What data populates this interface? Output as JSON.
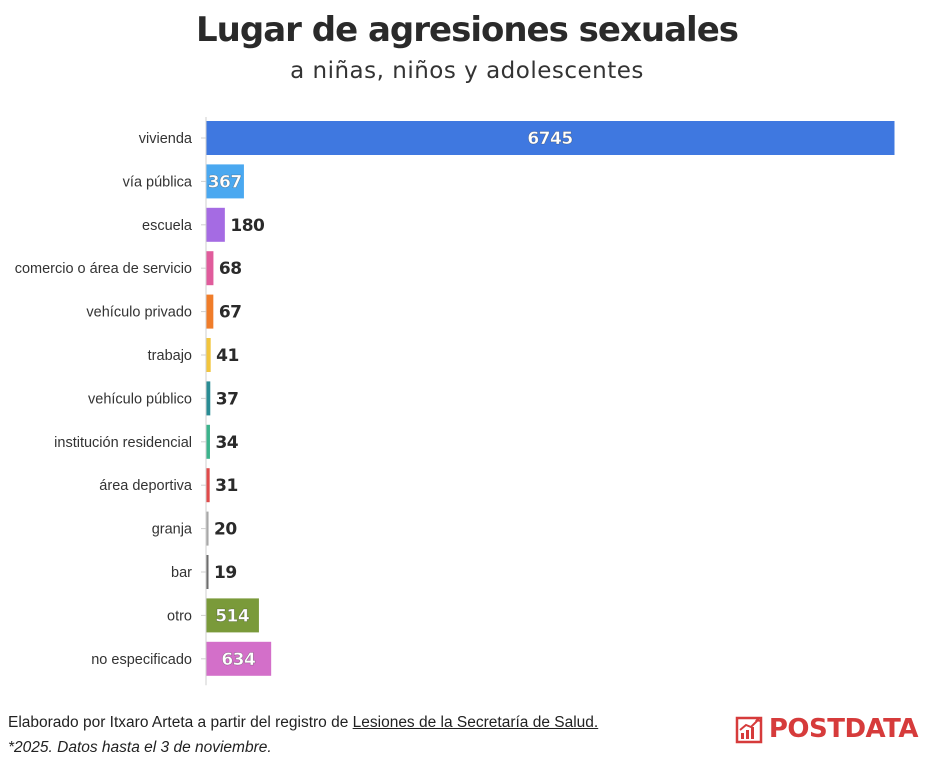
{
  "header": {
    "title": "Lugar de agresiones sexuales",
    "subtitle": "a niñas, niños y adolescentes"
  },
  "chart_data": {
    "type": "bar",
    "orientation": "horizontal",
    "title": "Lugar de agresiones sexuales",
    "subtitle": "a niñas, niños y adolescentes",
    "categories": [
      "vivienda",
      "vía pública",
      "escuela",
      "comercio o área de servicio",
      "vehículo privado",
      "trabajo",
      "vehículo público",
      "institución residencial",
      "área deportiva",
      "granja",
      "bar",
      "otro",
      "no especificado"
    ],
    "values": [
      6745,
      367,
      180,
      68,
      67,
      41,
      37,
      34,
      31,
      20,
      19,
      514,
      634
    ],
    "colors": [
      "#3f78e0",
      "#4aa8f0",
      "#a56be3",
      "#e05c9c",
      "#f07d2a",
      "#f2c53d",
      "#2a8c94",
      "#3cb38c",
      "#e04a4a",
      "#a8a8a8",
      "#6d6d6d",
      "#7a9a3a",
      "#d36fc9"
    ],
    "xlim": [
      0,
      6745
    ],
    "grid": false,
    "legend": "none",
    "xlabel": "",
    "ylabel": ""
  },
  "footer": {
    "credit_prefix": "Elaborado por Itxaro Arteta a partir del registro de ",
    "credit_link": "Lesiones de la Secretaría de Salud.",
    "note": "*2025. Datos hasta el 3 de noviembre."
  },
  "logo": {
    "text": "POSTDATA",
    "icon": "chart-logo-icon",
    "color": "#d63b3b"
  }
}
